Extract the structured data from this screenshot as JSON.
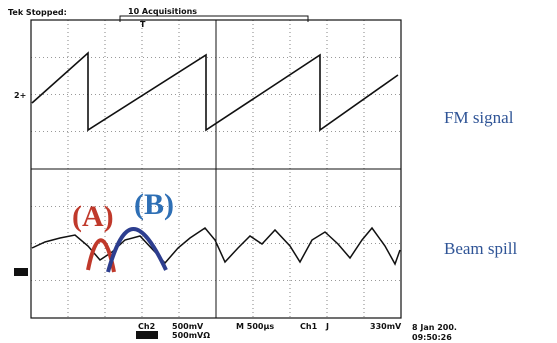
{
  "status": "Tek Stopped:",
  "acquisitions": "10 Acquisitions",
  "trigger_marker": "T",
  "channel_marker": "2+",
  "labels": {
    "fm": "FM signal",
    "beam": "Beam spill",
    "a": "(A)",
    "b": "(B)"
  },
  "readout": {
    "channel": "Ch2",
    "scale": "500mV",
    "scale2": "500mVΩ",
    "timebase": "M 500µs",
    "trigger_source": "Ch1",
    "trigger_slope": "J",
    "trigger_level": "330mV",
    "date": "8 Jan 200.",
    "time": "09:50:26"
  }
}
